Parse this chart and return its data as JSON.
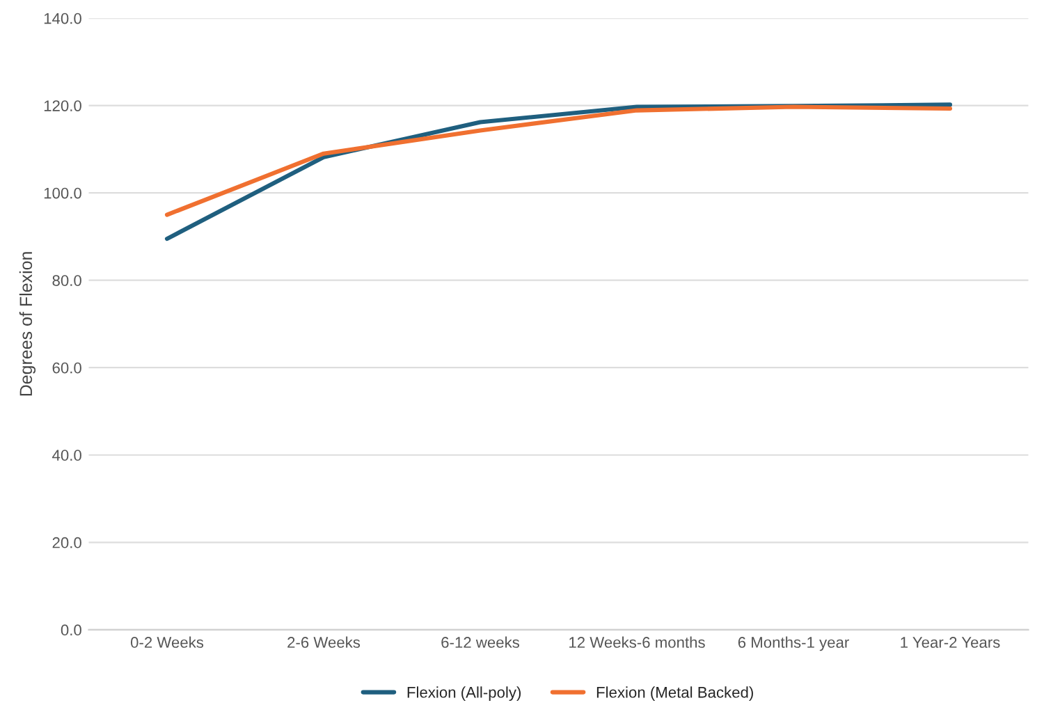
{
  "chart_data": {
    "type": "line",
    "ylabel": "Degrees of Flexion",
    "categories": [
      "0-2 Weeks",
      "2-6 Weeks",
      "6-12 weeks",
      "12 Weeks-6 months",
      "6 Months-1 year",
      "1 Year-2 Years"
    ],
    "series": [
      {
        "name": "Flexion (All-poly)",
        "color": "#1f5f7f",
        "values": [
          89.5,
          108.2,
          116.2,
          119.7,
          119.9,
          120.2
        ]
      },
      {
        "name": "Flexion (Metal Backed)",
        "color": "#f07030",
        "values": [
          95.0,
          109.0,
          114.3,
          118.9,
          119.7,
          119.3
        ]
      }
    ],
    "ylim": [
      0,
      140
    ],
    "yticks": [
      {
        "value": 0,
        "label": "0.0"
      },
      {
        "value": 20,
        "label": "20.0"
      },
      {
        "value": 40,
        "label": "40.0"
      },
      {
        "value": 60,
        "label": "60.0"
      },
      {
        "value": 80,
        "label": "80.0"
      },
      {
        "value": 100,
        "label": "100.0"
      },
      {
        "value": 120,
        "label": "120.0"
      },
      {
        "value": 140,
        "label": "140.0"
      }
    ],
    "grid": "y",
    "legend": "bottom",
    "marker": "none",
    "line_style": "solid"
  }
}
